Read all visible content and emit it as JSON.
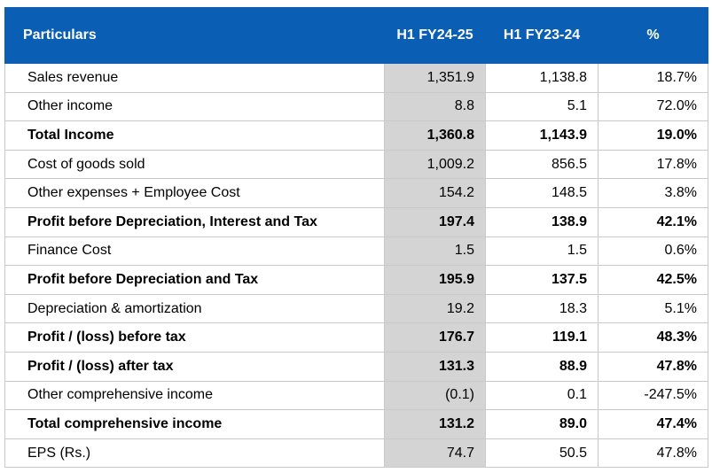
{
  "table": {
    "headers": [
      "Particulars",
      "H1 FY24-25",
      "H1 FY23-24",
      "%"
    ],
    "rows": [
      {
        "label": "Sales revenue",
        "h1_fy2425": "1,351.9",
        "h1_fy2324": "1,138.8",
        "pct": "18.7%",
        "bold": false
      },
      {
        "label": "Other income",
        "h1_fy2425": "8.8",
        "h1_fy2324": "5.1",
        "pct": "72.0%",
        "bold": false
      },
      {
        "label": "Total Income",
        "h1_fy2425": "1,360.8",
        "h1_fy2324": "1,143.9",
        "pct": "19.0%",
        "bold": true
      },
      {
        "label": "Cost of goods sold",
        "h1_fy2425": "1,009.2",
        "h1_fy2324": "856.5",
        "pct": "17.8%",
        "bold": false
      },
      {
        "label": "Other expenses + Employee Cost",
        "h1_fy2425": "154.2",
        "h1_fy2324": "148.5",
        "pct": "3.8%",
        "bold": false
      },
      {
        "label": "Profit before Depreciation, Interest and Tax",
        "h1_fy2425": "197.4",
        "h1_fy2324": "138.9",
        "pct": "42.1%",
        "bold": true
      },
      {
        "label": "Finance Cost",
        "h1_fy2425": "1.5",
        "h1_fy2324": "1.5",
        "pct": "0.6%",
        "bold": false
      },
      {
        "label": "Profit before Depreciation and Tax",
        "h1_fy2425": "195.9",
        "h1_fy2324": "137.5",
        "pct": "42.5%",
        "bold": true
      },
      {
        "label": "Depreciation & amortization",
        "h1_fy2425": "19.2",
        "h1_fy2324": "18.3",
        "pct": "5.1%",
        "bold": false
      },
      {
        "label": "Profit / (loss) before tax",
        "h1_fy2425": "176.7",
        "h1_fy2324": "119.1",
        "pct": "48.3%",
        "bold": true
      },
      {
        "label": "Profit / (loss) after tax",
        "h1_fy2425": "131.3",
        "h1_fy2324": "88.9",
        "pct": "47.8%",
        "bold": true
      },
      {
        "label": "Other comprehensive income",
        "h1_fy2425": "(0.1)",
        "h1_fy2324": "0.1",
        "pct": "-247.5%",
        "bold": false
      },
      {
        "label": "Total comprehensive income",
        "h1_fy2425": "131.2",
        "h1_fy2324": "89.0",
        "pct": "47.4%",
        "bold": true
      },
      {
        "label": "EPS (Rs.)",
        "h1_fy2425": "74.7",
        "h1_fy2324": "50.5",
        "pct": "47.8%",
        "bold": false
      }
    ]
  },
  "colors": {
    "header_bg": "#0a5fb4",
    "header_text": "#ffffff",
    "highlight_column_bg": "#d4d4d4",
    "grid_line": "#c9c9c9"
  }
}
